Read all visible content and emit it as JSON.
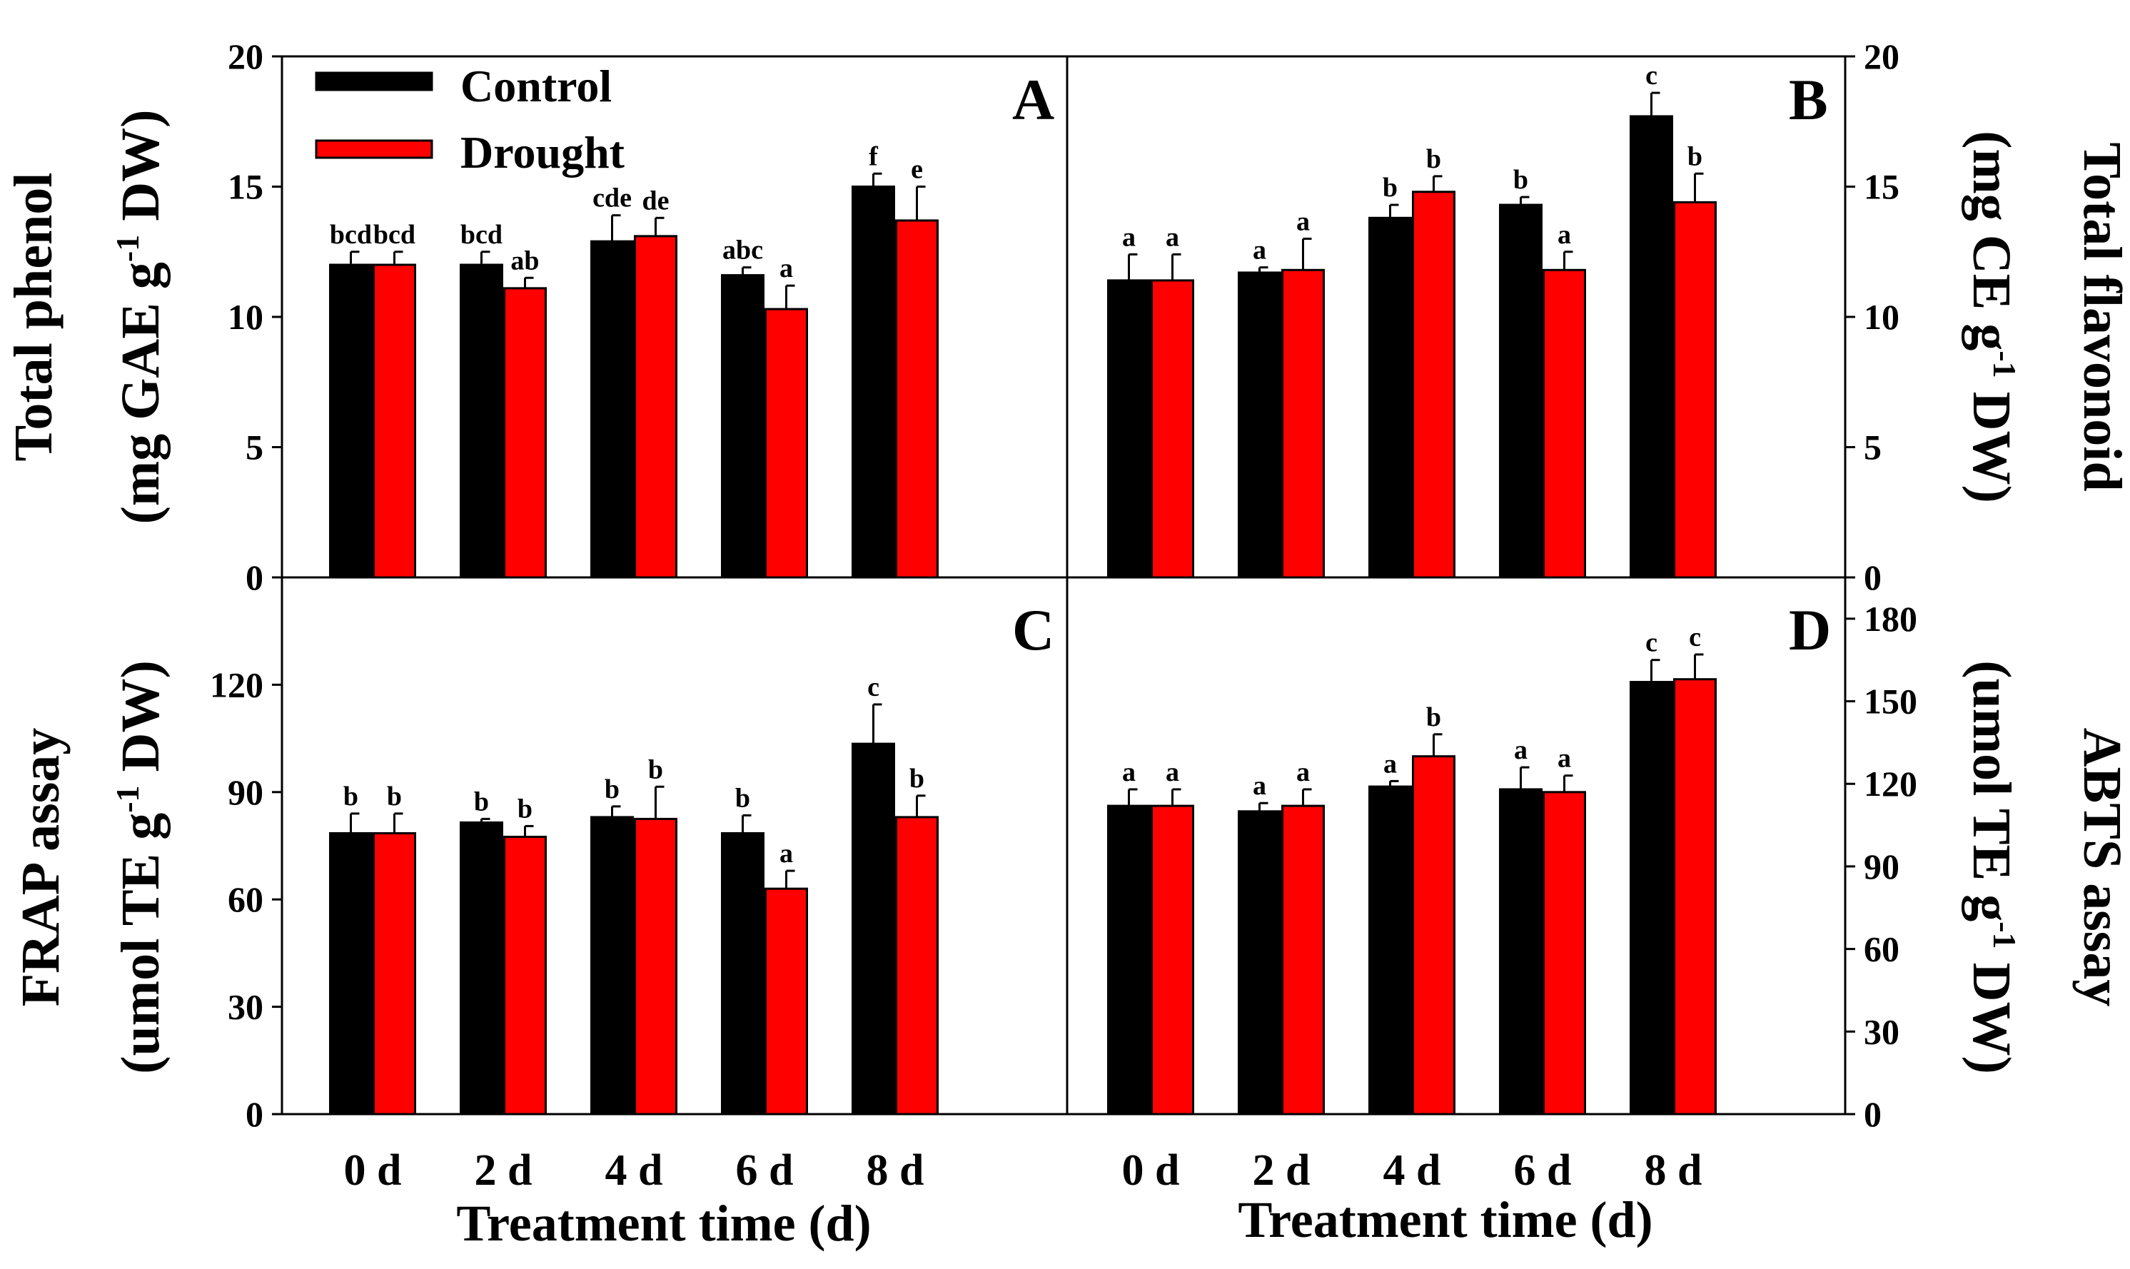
{
  "figure": {
    "x_axis_title": "Treatment time (d)",
    "legend": [
      {
        "label": "Control",
        "color": "#000000"
      },
      {
        "label": "Drought",
        "color": "#ff0000"
      }
    ]
  },
  "chart_data": [
    {
      "panel": "A",
      "type": "bar",
      "categories": [
        "0 d",
        "2 d",
        "4 d",
        "6 d",
        "8 d"
      ],
      "ylabel_main": "Total phenol",
      "ylabel_unit_pre": "(mg GAE g",
      "ylabel_unit_sup": "-1",
      "ylabel_unit_post": " DW)",
      "ylim": [
        0,
        20
      ],
      "yticks": [
        0,
        5,
        10,
        15,
        20
      ],
      "series": [
        {
          "name": "Control",
          "color": "#000000",
          "values": [
            12.0,
            12.0,
            12.9,
            11.6,
            15.0
          ],
          "errors": [
            0.5,
            0.5,
            1.0,
            0.3,
            0.5
          ],
          "labels": [
            "bcd",
            "bcd",
            "cde",
            "abc",
            "f"
          ]
        },
        {
          "name": "Drought",
          "color": "#ff0000",
          "values": [
            12.0,
            11.1,
            13.1,
            10.3,
            13.7
          ],
          "errors": [
            0.5,
            0.4,
            0.7,
            0.9,
            1.3
          ],
          "labels": [
            "bcd",
            "ab",
            "de",
            "a",
            "e"
          ]
        }
      ]
    },
    {
      "panel": "B",
      "type": "bar",
      "categories": [
        "0 d",
        "2 d",
        "4 d",
        "6 d",
        "8 d"
      ],
      "ylabel_main": "Total flavonoid",
      "ylabel_unit_pre": "(mg CE g",
      "ylabel_unit_sup": "-1",
      "ylabel_unit_post": " DW)",
      "ylim": [
        0,
        20
      ],
      "yticks": [
        0,
        5,
        10,
        15,
        20
      ],
      "series": [
        {
          "name": "Control",
          "color": "#000000",
          "values": [
            11.4,
            11.7,
            13.8,
            14.3,
            17.7
          ],
          "errors": [
            1.0,
            0.2,
            0.5,
            0.3,
            0.9
          ],
          "labels": [
            "a",
            "a",
            "b",
            "b",
            "c"
          ]
        },
        {
          "name": "Drought",
          "color": "#ff0000",
          "values": [
            11.4,
            11.8,
            14.8,
            11.8,
            14.4
          ],
          "errors": [
            1.0,
            1.2,
            0.6,
            0.7,
            1.1
          ],
          "labels": [
            "a",
            "a",
            "b",
            "a",
            "b"
          ]
        }
      ]
    },
    {
      "panel": "C",
      "type": "bar",
      "categories": [
        "0 d",
        "2 d",
        "4 d",
        "6 d",
        "8 d"
      ],
      "ylabel_main": "FRAP assay",
      "ylabel_unit_pre": "(umol TE g",
      "ylabel_unit_sup": "-1",
      "ylabel_unit_post": " DW)",
      "ylim": [
        0,
        150
      ],
      "yticks": [
        0,
        30,
        60,
        90,
        120
      ],
      "series": [
        {
          "name": "Control",
          "color": "#000000",
          "values": [
            78.5,
            81.5,
            83.0,
            78.5,
            103.5
          ],
          "errors": [
            5.5,
            1.0,
            3.0,
            5.0,
            11.0
          ],
          "labels": [
            "b",
            "b",
            "b",
            "b",
            "c"
          ]
        },
        {
          "name": "Drought",
          "color": "#ff0000",
          "values": [
            78.5,
            77.5,
            82.5,
            63.0,
            83.0
          ],
          "errors": [
            5.5,
            3.0,
            9.0,
            5.0,
            6.0
          ],
          "labels": [
            "b",
            "b",
            "b",
            "a",
            "b"
          ]
        }
      ]
    },
    {
      "panel": "D",
      "type": "bar",
      "categories": [
        "0 d",
        "2 d",
        "4 d",
        "6 d",
        "8 d"
      ],
      "ylabel_main": "ABTS assay",
      "ylabel_unit_pre": "(umol TE g",
      "ylabel_unit_sup": "-1",
      "ylabel_unit_post": " DW)",
      "ylim": [
        0,
        195
      ],
      "yticks": [
        0,
        30,
        60,
        90,
        120,
        150,
        180
      ],
      "series": [
        {
          "name": "Control",
          "color": "#000000",
          "values": [
            112,
            110,
            119,
            118,
            157
          ],
          "errors": [
            6,
            3,
            2,
            8,
            8
          ],
          "labels": [
            "a",
            "a",
            "a",
            "a",
            "c"
          ]
        },
        {
          "name": "Drought",
          "color": "#ff0000",
          "values": [
            112,
            112,
            130,
            117,
            158
          ],
          "errors": [
            6,
            6,
            8,
            6,
            9
          ],
          "labels": [
            "a",
            "a",
            "b",
            "a",
            "c"
          ]
        }
      ]
    }
  ]
}
